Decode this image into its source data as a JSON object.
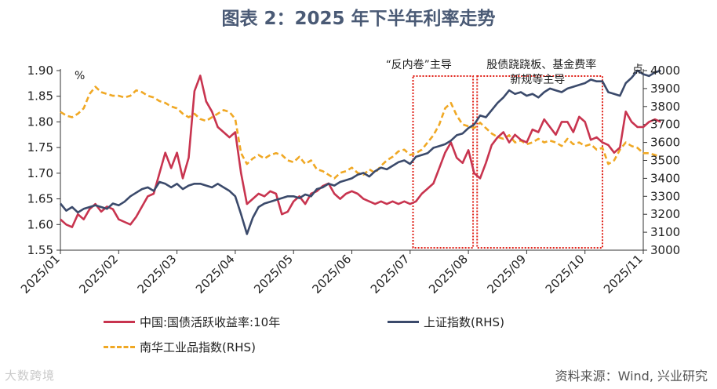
{
  "title": "图表 2：2025 年下半年利率走势",
  "source": "资料来源：Wind, 兴业研究",
  "watermark": "大数跨境",
  "colors": {
    "bond": "#c8344f",
    "sse": "#3b4a6b",
    "nanhua": "#f0a824",
    "box": "#e0231a"
  },
  "chart_data": {
    "type": "line",
    "x_ticks": [
      "2025/01",
      "2025/02",
      "2025/03",
      "2025/04",
      "2025/05",
      "2025/06",
      "2025/07",
      "2025/08",
      "2025/09",
      "2025/10",
      "2025/11"
    ],
    "left_axis": {
      "label": "%",
      "min": 1.55,
      "max": 1.9,
      "ticks": [
        "1.55",
        "1.60",
        "1.65",
        "1.70",
        "1.75",
        "1.80",
        "1.85",
        "1.90"
      ]
    },
    "right_axis": {
      "label": "点",
      "min": 3000,
      "max": 4000,
      "ticks": [
        "3000",
        "3100",
        "3200",
        "3300",
        "3400",
        "3500",
        "3600",
        "3700",
        "3800",
        "3900",
        "4000"
      ]
    },
    "annotations": [
      {
        "text": "“反内卷”主导",
        "from": 6.05,
        "to": 7.08
      },
      {
        "text_line1": "股债跷跷板、基金费率",
        "text_line2": "新规等主导",
        "from": 7.15,
        "to": 9.3
      }
    ],
    "series": [
      {
        "name": "中国:国债活跃收益率:10年",
        "axis": "left",
        "style": "solid",
        "x": [
          0,
          0.1,
          0.2,
          0.3,
          0.4,
          0.5,
          0.6,
          0.7,
          0.8,
          0.9,
          1.0,
          1.1,
          1.2,
          1.3,
          1.4,
          1.5,
          1.6,
          1.7,
          1.8,
          1.9,
          2.0,
          2.1,
          2.2,
          2.3,
          2.4,
          2.5,
          2.6,
          2.7,
          2.8,
          2.9,
          3.0,
          3.1,
          3.2,
          3.3,
          3.4,
          3.5,
          3.6,
          3.7,
          3.8,
          3.9,
          4.0,
          4.1,
          4.2,
          4.3,
          4.4,
          4.5,
          4.6,
          4.7,
          4.8,
          4.9,
          5.0,
          5.1,
          5.2,
          5.3,
          5.4,
          5.5,
          5.6,
          5.7,
          5.8,
          5.9,
          6.0,
          6.1,
          6.2,
          6.3,
          6.4,
          6.5,
          6.6,
          6.7,
          6.8,
          6.9,
          7.0,
          7.1,
          7.2,
          7.3,
          7.4,
          7.5,
          7.6,
          7.7,
          7.8,
          7.9,
          8.0,
          8.1,
          8.2,
          8.3,
          8.4,
          8.5,
          8.6,
          8.7,
          8.8,
          8.9,
          9.0,
          9.1,
          9.2,
          9.3,
          9.4,
          9.5,
          9.6,
          9.7,
          9.8,
          9.9,
          10.0,
          10.1,
          10.2,
          10.3
        ],
        "values": [
          1.61,
          1.6,
          1.595,
          1.62,
          1.61,
          1.63,
          1.64,
          1.625,
          1.635,
          1.63,
          1.61,
          1.605,
          1.6,
          1.615,
          1.635,
          1.655,
          1.66,
          1.7,
          1.74,
          1.71,
          1.74,
          1.69,
          1.73,
          1.86,
          1.89,
          1.84,
          1.82,
          1.79,
          1.78,
          1.77,
          1.78,
          1.7,
          1.64,
          1.65,
          1.66,
          1.655,
          1.665,
          1.66,
          1.62,
          1.625,
          1.645,
          1.655,
          1.64,
          1.66,
          1.665,
          1.675,
          1.68,
          1.66,
          1.65,
          1.66,
          1.665,
          1.66,
          1.65,
          1.645,
          1.64,
          1.645,
          1.64,
          1.645,
          1.64,
          1.645,
          1.64,
          1.645,
          1.66,
          1.67,
          1.68,
          1.71,
          1.74,
          1.76,
          1.73,
          1.72,
          1.745,
          1.7,
          1.69,
          1.72,
          1.755,
          1.77,
          1.78,
          1.76,
          1.775,
          1.765,
          1.76,
          1.785,
          1.78,
          1.805,
          1.79,
          1.775,
          1.8,
          1.8,
          1.78,
          1.81,
          1.8,
          1.765,
          1.77,
          1.76,
          1.755,
          1.74,
          1.75,
          1.82,
          1.8,
          1.79,
          1.79,
          1.8,
          1.805,
          1.8
        ]
      },
      {
        "name": "上证指数(RHS)",
        "axis": "right",
        "style": "solid",
        "x": [
          0,
          0.1,
          0.2,
          0.3,
          0.4,
          0.5,
          0.6,
          0.7,
          0.8,
          0.9,
          1.0,
          1.1,
          1.2,
          1.3,
          1.4,
          1.5,
          1.6,
          1.7,
          1.8,
          1.9,
          2.0,
          2.1,
          2.2,
          2.3,
          2.4,
          2.5,
          2.6,
          2.7,
          2.8,
          2.9,
          3.0,
          3.1,
          3.2,
          3.3,
          3.4,
          3.5,
          3.6,
          3.7,
          3.8,
          3.9,
          4.0,
          4.1,
          4.2,
          4.3,
          4.4,
          4.5,
          4.6,
          4.7,
          4.8,
          4.9,
          5.0,
          5.1,
          5.2,
          5.3,
          5.4,
          5.5,
          5.6,
          5.7,
          5.8,
          5.9,
          6.0,
          6.1,
          6.2,
          6.3,
          6.4,
          6.5,
          6.6,
          6.7,
          6.8,
          6.9,
          7.0,
          7.1,
          7.2,
          7.3,
          7.4,
          7.5,
          7.6,
          7.7,
          7.8,
          7.9,
          8.0,
          8.1,
          8.2,
          8.3,
          8.4,
          8.5,
          8.6,
          8.7,
          8.8,
          8.9,
          9.0,
          9.1,
          9.2,
          9.3,
          9.4,
          9.5,
          9.6,
          9.7,
          9.8,
          9.9,
          10.0,
          10.1,
          10.2,
          10.3
        ],
        "values": [
          3260,
          3220,
          3240,
          3210,
          3230,
          3240,
          3250,
          3240,
          3230,
          3260,
          3250,
          3270,
          3300,
          3320,
          3340,
          3350,
          3330,
          3380,
          3370,
          3350,
          3370,
          3340,
          3360,
          3370,
          3370,
          3360,
          3350,
          3370,
          3350,
          3330,
          3300,
          3200,
          3090,
          3180,
          3240,
          3260,
          3270,
          3280,
          3290,
          3300,
          3300,
          3290,
          3310,
          3300,
          3340,
          3350,
          3370,
          3360,
          3380,
          3390,
          3400,
          3420,
          3430,
          3410,
          3440,
          3460,
          3450,
          3470,
          3490,
          3500,
          3480,
          3520,
          3530,
          3540,
          3570,
          3580,
          3590,
          3610,
          3640,
          3650,
          3680,
          3700,
          3750,
          3740,
          3780,
          3820,
          3850,
          3890,
          3870,
          3880,
          3860,
          3870,
          3850,
          3880,
          3900,
          3890,
          3880,
          3900,
          3910,
          3920,
          3930,
          3950,
          3940,
          3940,
          3880,
          3870,
          3860,
          3930,
          3960,
          4000,
          3980,
          3970,
          3990,
          4000
        ]
      },
      {
        "name": "南华工业品指数(RHS)",
        "axis": "right",
        "style": "dashed",
        "x": [
          0,
          0.1,
          0.2,
          0.3,
          0.4,
          0.5,
          0.6,
          0.7,
          0.8,
          0.9,
          1.0,
          1.1,
          1.2,
          1.3,
          1.4,
          1.5,
          1.6,
          1.7,
          1.8,
          1.9,
          2.0,
          2.1,
          2.2,
          2.3,
          2.4,
          2.5,
          2.6,
          2.7,
          2.8,
          2.9,
          3.0,
          3.1,
          3.2,
          3.3,
          3.4,
          3.5,
          3.6,
          3.7,
          3.8,
          3.9,
          4.0,
          4.1,
          4.2,
          4.3,
          4.4,
          4.5,
          4.6,
          4.7,
          4.8,
          4.9,
          5.0,
          5.1,
          5.2,
          5.3,
          5.4,
          5.5,
          5.6,
          5.7,
          5.8,
          5.9,
          6.0,
          6.1,
          6.2,
          6.3,
          6.4,
          6.5,
          6.6,
          6.7,
          6.8,
          6.9,
          7.0,
          7.1,
          7.2,
          7.3,
          7.4,
          7.5,
          7.6,
          7.7,
          7.8,
          7.9,
          8.0,
          8.1,
          8.2,
          8.3,
          8.4,
          8.5,
          8.6,
          8.7,
          8.8,
          8.9,
          9.0,
          9.1,
          9.2,
          9.3,
          9.4,
          9.5,
          9.6,
          9.7,
          9.8,
          9.9,
          10.0,
          10.1,
          10.2,
          10.3
        ],
        "values": [
          3770,
          3750,
          3740,
          3760,
          3790,
          3870,
          3910,
          3880,
          3870,
          3860,
          3860,
          3850,
          3860,
          3890,
          3880,
          3860,
          3850,
          3830,
          3820,
          3800,
          3790,
          3760,
          3740,
          3760,
          3730,
          3720,
          3740,
          3760,
          3780,
          3770,
          3730,
          3540,
          3480,
          3510,
          3530,
          3510,
          3530,
          3540,
          3530,
          3500,
          3490,
          3520,
          3480,
          3500,
          3450,
          3440,
          3420,
          3400,
          3430,
          3440,
          3460,
          3430,
          3420,
          3450,
          3430,
          3470,
          3500,
          3520,
          3550,
          3560,
          3530,
          3540,
          3560,
          3600,
          3640,
          3700,
          3790,
          3820,
          3750,
          3700,
          3690,
          3680,
          3710,
          3680,
          3650,
          3630,
          3620,
          3640,
          3600,
          3610,
          3590,
          3600,
          3620,
          3600,
          3610,
          3600,
          3580,
          3620,
          3590,
          3600,
          3580,
          3590,
          3560,
          3570,
          3480,
          3500,
          3560,
          3600,
          3580,
          3570,
          3540,
          3540,
          3530,
          3520
        ]
      }
    ],
    "legend": [
      {
        "label": "中国:国债活跃收益率:10年"
      },
      {
        "label": "上证指数(RHS)"
      },
      {
        "label": "南华工业品指数(RHS)"
      }
    ]
  }
}
